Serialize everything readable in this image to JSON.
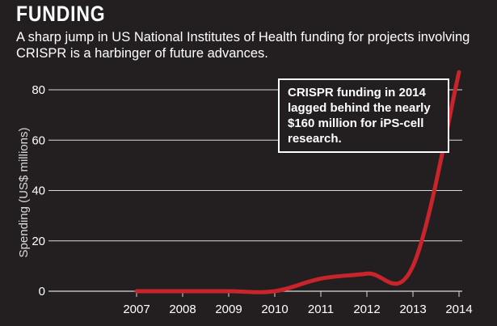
{
  "header": {
    "title": "FUNDING",
    "subtitle": "A sharp jump in US National Institutes of Health funding for projects involving CRISPR is a harbinger of future advances."
  },
  "annotation": {
    "text": "CRISPR funding in 2014 lagged behind the nearly $160 million for iPS-cell research."
  },
  "colors": {
    "background": "#231f20",
    "line": "#c8242b",
    "grid": "#d9d9d9"
  },
  "chart_data": {
    "type": "line",
    "title": "FUNDING",
    "ylabel": "Spending (US$ millions)",
    "xlabel": "",
    "x": [
      2007,
      2008,
      2009,
      2010,
      2011,
      2012,
      2013,
      2014
    ],
    "series": [
      {
        "values": [
          0,
          0,
          0,
          0,
          5,
          7,
          10,
          87
        ]
      }
    ],
    "xlim": [
      2007,
      2014
    ],
    "ylim": [
      0,
      87
    ],
    "yticks": [
      0,
      20,
      40,
      60,
      80
    ],
    "xtick_labels": [
      "2007",
      "2008",
      "2009",
      "2010",
      "2011",
      "2012",
      "2013",
      "2014"
    ],
    "ytick_labels": [
      "0",
      "20",
      "40",
      "60",
      "80"
    ],
    "grid": true,
    "legend": "none"
  }
}
